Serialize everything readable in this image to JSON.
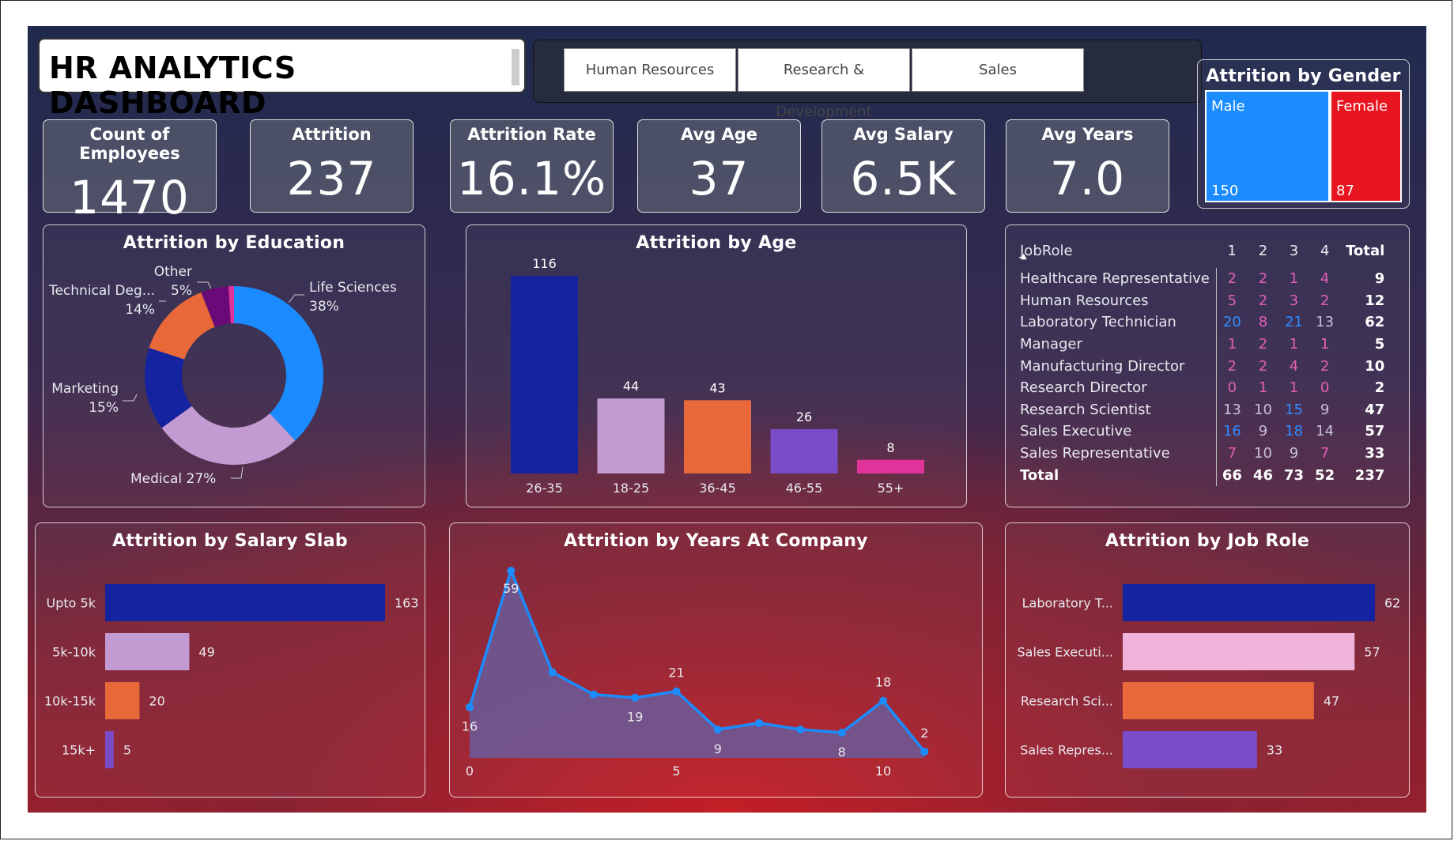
{
  "header": {
    "title": "HR ANALYTICS DASHBOARD"
  },
  "slicer": {
    "options": [
      "Human Resources",
      "Research & Development",
      "Sales"
    ]
  },
  "kpis": [
    {
      "label": "Count of Employees",
      "value": "1470"
    },
    {
      "label": "Attrition",
      "value": "237"
    },
    {
      "label": "Attrition Rate",
      "value": "16.1%"
    },
    {
      "label": "Avg Age",
      "value": "37"
    },
    {
      "label": "Avg Salary",
      "value": "6.5K"
    },
    {
      "label": "Avg Years",
      "value": "7.0"
    }
  ],
  "gender": {
    "title": "Attrition by Gender",
    "items": [
      {
        "name": "Male",
        "value": "150",
        "color": "#1a8cff"
      },
      {
        "name": "Female",
        "value": "87",
        "color": "#e8141f"
      }
    ]
  },
  "table": {
    "header": [
      "JobRole",
      "1",
      "2",
      "3",
      "4",
      "Total"
    ],
    "rows": [
      {
        "role": "Healthcare Representative",
        "vals": [
          "2",
          "2",
          "1",
          "4"
        ],
        "total": "9"
      },
      {
        "role": "Human Resources",
        "vals": [
          "5",
          "2",
          "3",
          "2"
        ],
        "total": "12"
      },
      {
        "role": "Laboratory Technician",
        "vals": [
          "20",
          "8",
          "21",
          "13"
        ],
        "total": "62"
      },
      {
        "role": "Manager",
        "vals": [
          "1",
          "2",
          "1",
          "1"
        ],
        "total": "5"
      },
      {
        "role": "Manufacturing Director",
        "vals": [
          "2",
          "2",
          "4",
          "2"
        ],
        "total": "10"
      },
      {
        "role": "Research Director",
        "vals": [
          "0",
          "1",
          "1",
          "0"
        ],
        "total": "2"
      },
      {
        "role": "Research Scientist",
        "vals": [
          "13",
          "10",
          "15",
          "9"
        ],
        "total": "47"
      },
      {
        "role": "Sales Executive",
        "vals": [
          "16",
          "9",
          "18",
          "14"
        ],
        "total": "57"
      },
      {
        "role": "Sales Representative",
        "vals": [
          "7",
          "10",
          "9",
          "7"
        ],
        "total": "33"
      }
    ],
    "total_row": {
      "role": "Total",
      "vals": [
        "66",
        "46",
        "73",
        "52"
      ],
      "total": "237"
    }
  },
  "chart_data": [
    {
      "type": "pie",
      "title": "Attrition by Education",
      "categories": [
        "Life Sciences",
        "Medical",
        "Marketing",
        "Technical Deg...",
        "Other",
        "Human Resources"
      ],
      "values": [
        38,
        27,
        15,
        14,
        5,
        1
      ],
      "colors": [
        "#1a8cff",
        "#c39bd3",
        "#1423a0",
        "#e8683a",
        "#6a0a78",
        "#e0349a"
      ],
      "labels": [
        {
          "line1": "Life Sciences",
          "line2": "38%"
        },
        {
          "line1": "Medical 27%",
          "line2": ""
        },
        {
          "line1": "Marketing",
          "line2": "15%"
        },
        {
          "line1": "Technical Deg...",
          "line2": "14%"
        },
        {
          "line1": "Other",
          "line2": "5%"
        }
      ]
    },
    {
      "type": "bar",
      "title": "Attrition by Age",
      "categories": [
        "26-35",
        "18-25",
        "36-45",
        "46-55",
        "55+"
      ],
      "values": [
        116,
        44,
        43,
        26,
        8
      ],
      "colors": [
        "#1423a0",
        "#c39bd3",
        "#e8683a",
        "#7b4cc8",
        "#e0349a"
      ],
      "ylim": [
        0,
        116
      ]
    },
    {
      "type": "bar",
      "orientation": "horizontal",
      "title": "Attrition by Salary Slab",
      "categories": [
        "Upto 5k",
        "5k-10k",
        "10k-15k",
        "15k+"
      ],
      "values": [
        163,
        49,
        20,
        5
      ],
      "colors": [
        "#1423a0",
        "#c39bd3",
        "#e8683a",
        "#7b4cc8"
      ],
      "xlim": [
        0,
        163
      ]
    },
    {
      "type": "area",
      "title": "Attrition by Years At Company",
      "x": [
        0,
        1,
        2,
        3,
        4,
        5,
        6,
        7,
        8,
        9,
        10,
        11
      ],
      "values": [
        16,
        59,
        27,
        20,
        19,
        21,
        9,
        11,
        9,
        8,
        18,
        2
      ],
      "data_labels": {
        "0": "16",
        "1": "59",
        "4": "19",
        "5": "21",
        "6": "9",
        "9": "8",
        "10": "18",
        "11": "2"
      },
      "xticks": [
        "0",
        "5",
        "10"
      ],
      "ylim": [
        0,
        59
      ],
      "color": "#1a8cff"
    },
    {
      "type": "bar",
      "orientation": "horizontal",
      "title": "Attrition by Job Role",
      "categories": [
        "Laboratory T...",
        "Sales Executi...",
        "Research Sci...",
        "Sales Repres..."
      ],
      "values": [
        62,
        57,
        47,
        33
      ],
      "colors": [
        "#1423a0",
        "#f0b4dc",
        "#e8683a",
        "#7b4cc8"
      ],
      "xlim": [
        0,
        62
      ]
    }
  ]
}
